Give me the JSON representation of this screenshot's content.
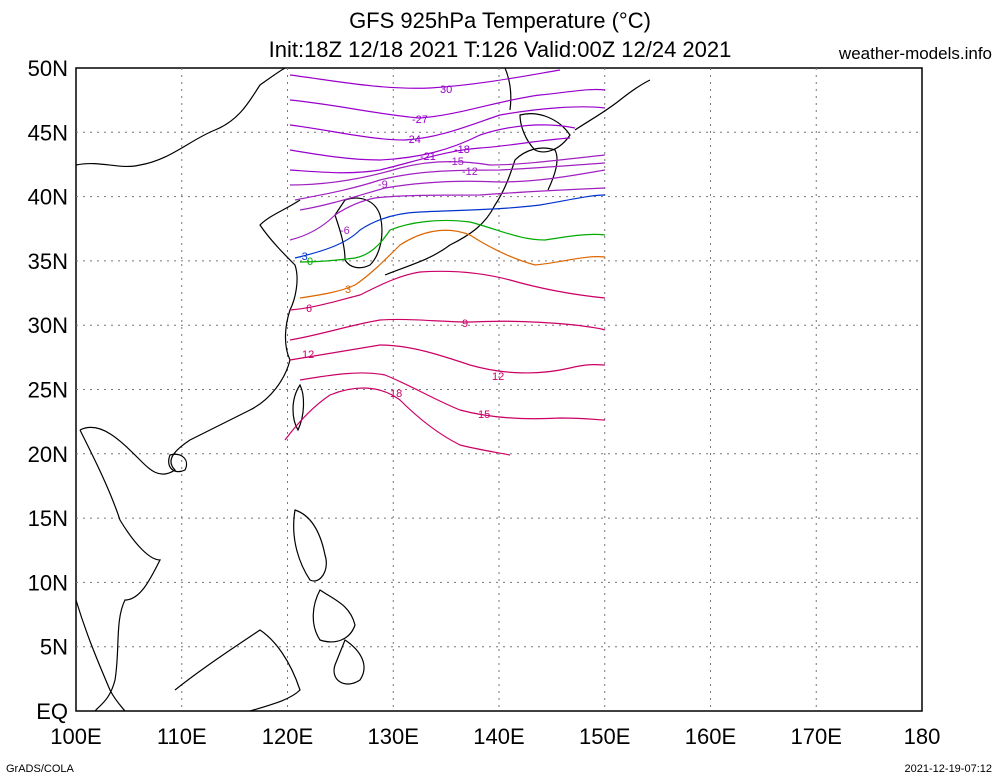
{
  "title": {
    "line1": "GFS 925hPa Temperature (°C)",
    "line2": "Init:18Z 12/18 2021 T:126 Valid:00Z 12/24 2021"
  },
  "site": "weather-models.info",
  "credits": {
    "left": "GrADS/COLA",
    "right": "2021-12-19-07:12"
  },
  "axes": {
    "lon_ticks": [
      "100E",
      "110E",
      "120E",
      "130E",
      "140E",
      "150E",
      "160E",
      "170E",
      "180"
    ],
    "lat_ticks": [
      "50N",
      "45N",
      "40N",
      "35N",
      "30N",
      "25N",
      "20N",
      "15N",
      "10N",
      "5N",
      "EQ"
    ]
  },
  "contours": [
    {
      "value": "30",
      "color": "#9900cc"
    },
    {
      "value": "-27",
      "color": "#9900cc"
    },
    {
      "value": "-24",
      "color": "#9900cc"
    },
    {
      "value": "-21",
      "color": "#9900cc"
    },
    {
      "value": "-18",
      "color": "#9900cc"
    },
    {
      "value": "-15",
      "color": "#a020c0"
    },
    {
      "value": "-12",
      "color": "#a020c0"
    },
    {
      "value": "-9",
      "color": "#a020c0"
    },
    {
      "value": "-6",
      "color": "#a020c0"
    },
    {
      "value": "-3",
      "color": "#0033cc"
    },
    {
      "value": "0",
      "color": "#00aa00"
    },
    {
      "value": "3",
      "color": "#dd6600"
    },
    {
      "value": "6",
      "color": "#cc0066"
    },
    {
      "value": "9",
      "color": "#cc0066"
    },
    {
      "value": "12",
      "color": "#cc0066"
    },
    {
      "value": "15",
      "color": "#cc0066"
    },
    {
      "value": "18",
      "color": "#cc0066"
    }
  ]
}
